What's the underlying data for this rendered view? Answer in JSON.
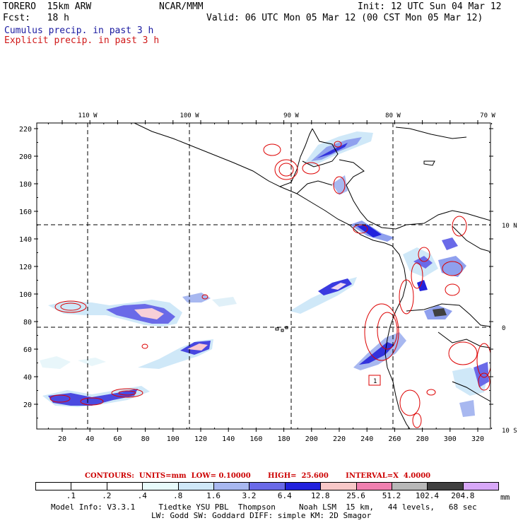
{
  "header": {
    "model": "TORERO  15km ARW",
    "org": "NCAR/MMM",
    "init": "Init: 12 UTC Sun 04 Mar 12",
    "fcst": "Fcst:   18 h",
    "valid": "Valid: 06 UTC Mon 05 Mar 12 (00 CST Mon 05 Mar 12)",
    "legend_cumulus": "Cumulus precip. in past 3 h",
    "legend_explicit": "Explicit precip. in past 3 h"
  },
  "map": {
    "lon_labels": [
      "110 W",
      "100 W",
      "90 W",
      "80 W",
      "70 W"
    ],
    "lat_labels": [
      "10 N",
      "0",
      "10 S"
    ],
    "x_ticks": [
      "20",
      "40",
      "60",
      "80",
      "100",
      "120",
      "140",
      "160",
      "180",
      "200",
      "220",
      "240",
      "260",
      "280",
      "300",
      "320"
    ],
    "y_ticks": [
      "20",
      "40",
      "60",
      "80",
      "100",
      "120",
      "140",
      "160",
      "180",
      "200",
      "220"
    ],
    "box_label": "1"
  },
  "contours": {
    "label": "CONTOURS:",
    "units": "UNITS=mm",
    "low": "LOW= 0.10000",
    "high": "HIGH=  25.600",
    "interval": "INTERVAL=X  4.0000"
  },
  "colorbar": {
    "labels": [
      ".1",
      ".2",
      ".4",
      ".8",
      "1.6",
      "3.2",
      "6.4",
      "12.8",
      "25.6",
      "51.2",
      "102.4",
      "204.8"
    ],
    "unit": "mm",
    "colors": [
      "#ffffff",
      "#ffffff",
      "#ffffff",
      "#e8fbfb",
      "#cfe8f8",
      "#a8b8f0",
      "#6a6ae8",
      "#2222dd",
      "#f8c8c8",
      "#f080b0",
      "#b8b8b8",
      "#404040",
      "#d8a8f8"
    ]
  },
  "model_info": {
    "line1": "Model Info: V3.3.1     Tiedtke YSU PBL  Thompson     Noah LSM  15 km,   44 levels,   68 sec",
    "line2": "LW: Godd SW: Goddard DIFF: simple KM: 2D Smagor"
  }
}
